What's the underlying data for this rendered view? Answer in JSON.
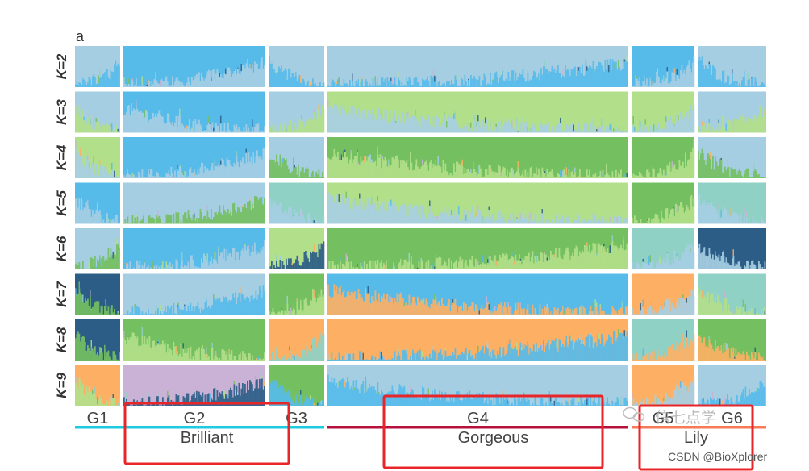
{
  "chart_data": {
    "type": "bar",
    "subtype": "stacked-admixture",
    "panel_label": "a",
    "rows": [
      "K=2",
      "K=3",
      "K=4",
      "K=5",
      "K=6",
      "K=7",
      "K=8",
      "K=9"
    ],
    "groups": [
      {
        "name": "G1",
        "id": "g1"
      },
      {
        "name": "G2",
        "id": "g2"
      },
      {
        "name": "G3",
        "id": "g3"
      },
      {
        "name": "G4",
        "id": "g4"
      },
      {
        "name": "G5",
        "id": "g5"
      },
      {
        "name": "G6",
        "id": "g6"
      }
    ],
    "group_label_visible": [
      "G1",
      "G2",
      "G3",
      "G4",
      "G5",
      "G6"
    ],
    "underline_segments": [
      {
        "groups": [
          "G1",
          "G2",
          "G3"
        ],
        "color": "#1ecbe1"
      },
      {
        "groups": [
          "G4"
        ],
        "color": "#b5123e"
      },
      {
        "groups": [
          "G5",
          "G6"
        ],
        "color": "#f57b5a"
      }
    ],
    "highlight_boxes": [
      {
        "label": "Brilliant",
        "groups": [
          "G2"
        ]
      },
      {
        "label": "Gorgeous",
        "groups": [
          "G4"
        ]
      },
      {
        "label": "Lily",
        "groups": [
          "G5"
        ]
      }
    ],
    "cluster_colors": {
      "c1": "#a6cee3",
      "c2": "#57bbea",
      "c3": "#b2df8a",
      "c4": "#74c060",
      "c5": "#8fd1c5",
      "c6": "#2b5d86",
      "c7": "#fdb064",
      "c8": "#cab2d6"
    },
    "dominant_cluster": {
      "K=2": {
        "G1": [
          "c1",
          "c2"
        ],
        "G2": [
          "c2",
          "c1"
        ],
        "G3": [
          "c1",
          "c2"
        ],
        "G4": [
          "c1",
          "c2"
        ],
        "G5": [
          "c2",
          "c1"
        ],
        "G6": [
          "c1",
          "c2"
        ]
      },
      "K=3": {
        "G1": [
          "c1",
          "c3"
        ],
        "G2": [
          "c2",
          "c1"
        ],
        "G3": [
          "c1",
          "c3"
        ],
        "G4": [
          "c3",
          "c1"
        ],
        "G5": [
          "c3",
          "c1"
        ],
        "G6": [
          "c1",
          "c3"
        ]
      },
      "K=4": {
        "G1": [
          "c3",
          "c1"
        ],
        "G2": [
          "c2",
          "c1"
        ],
        "G3": [
          "c1",
          "c4"
        ],
        "G4": [
          "c4",
          "c3"
        ],
        "G5": [
          "c4",
          "c3"
        ],
        "G6": [
          "c1",
          "c4"
        ]
      },
      "K=5": {
        "G1": [
          "c2",
          "c1"
        ],
        "G2": [
          "c1",
          "c4"
        ],
        "G3": [
          "c5",
          "c1"
        ],
        "G4": [
          "c3",
          "c1"
        ],
        "G5": [
          "c4",
          "c3"
        ],
        "G6": [
          "c5",
          "c1"
        ]
      },
      "K=6": {
        "G1": [
          "c1",
          "c4"
        ],
        "G2": [
          "c2",
          "c1"
        ],
        "G3": [
          "c3",
          "c6"
        ],
        "G4": [
          "c4",
          "c3"
        ],
        "G5": [
          "c5",
          "c1"
        ],
        "G6": [
          "c6",
          "c1"
        ]
      },
      "K=7": {
        "G1": [
          "c6",
          "c4"
        ],
        "G2": [
          "c1",
          "c2"
        ],
        "G3": [
          "c4",
          "c3"
        ],
        "G4": [
          "c2",
          "c7"
        ],
        "G5": [
          "c7",
          "c1"
        ],
        "G6": [
          "c5",
          "c3"
        ]
      },
      "K=8": {
        "G1": [
          "c6",
          "c4"
        ],
        "G2": [
          "c4",
          "c3"
        ],
        "G3": [
          "c7",
          "c5"
        ],
        "G4": [
          "c7",
          "c2"
        ],
        "G5": [
          "c5",
          "c7"
        ],
        "G6": [
          "c4",
          "c7"
        ]
      },
      "K=9": {
        "G1": [
          "c7",
          "c3"
        ],
        "G2": [
          "c8",
          "c6"
        ],
        "G3": [
          "c4",
          "c2"
        ],
        "G4": [
          "c1",
          "c2"
        ],
        "G5": [
          "c7",
          "c1"
        ],
        "G6": [
          "c1",
          "c2"
        ]
      }
    },
    "xlabel": "",
    "ylabel": "",
    "ylim": [
      0,
      1
    ]
  },
  "watermark": {
    "channel": "信七点学",
    "credit": "CSDN @BioXplorer"
  }
}
